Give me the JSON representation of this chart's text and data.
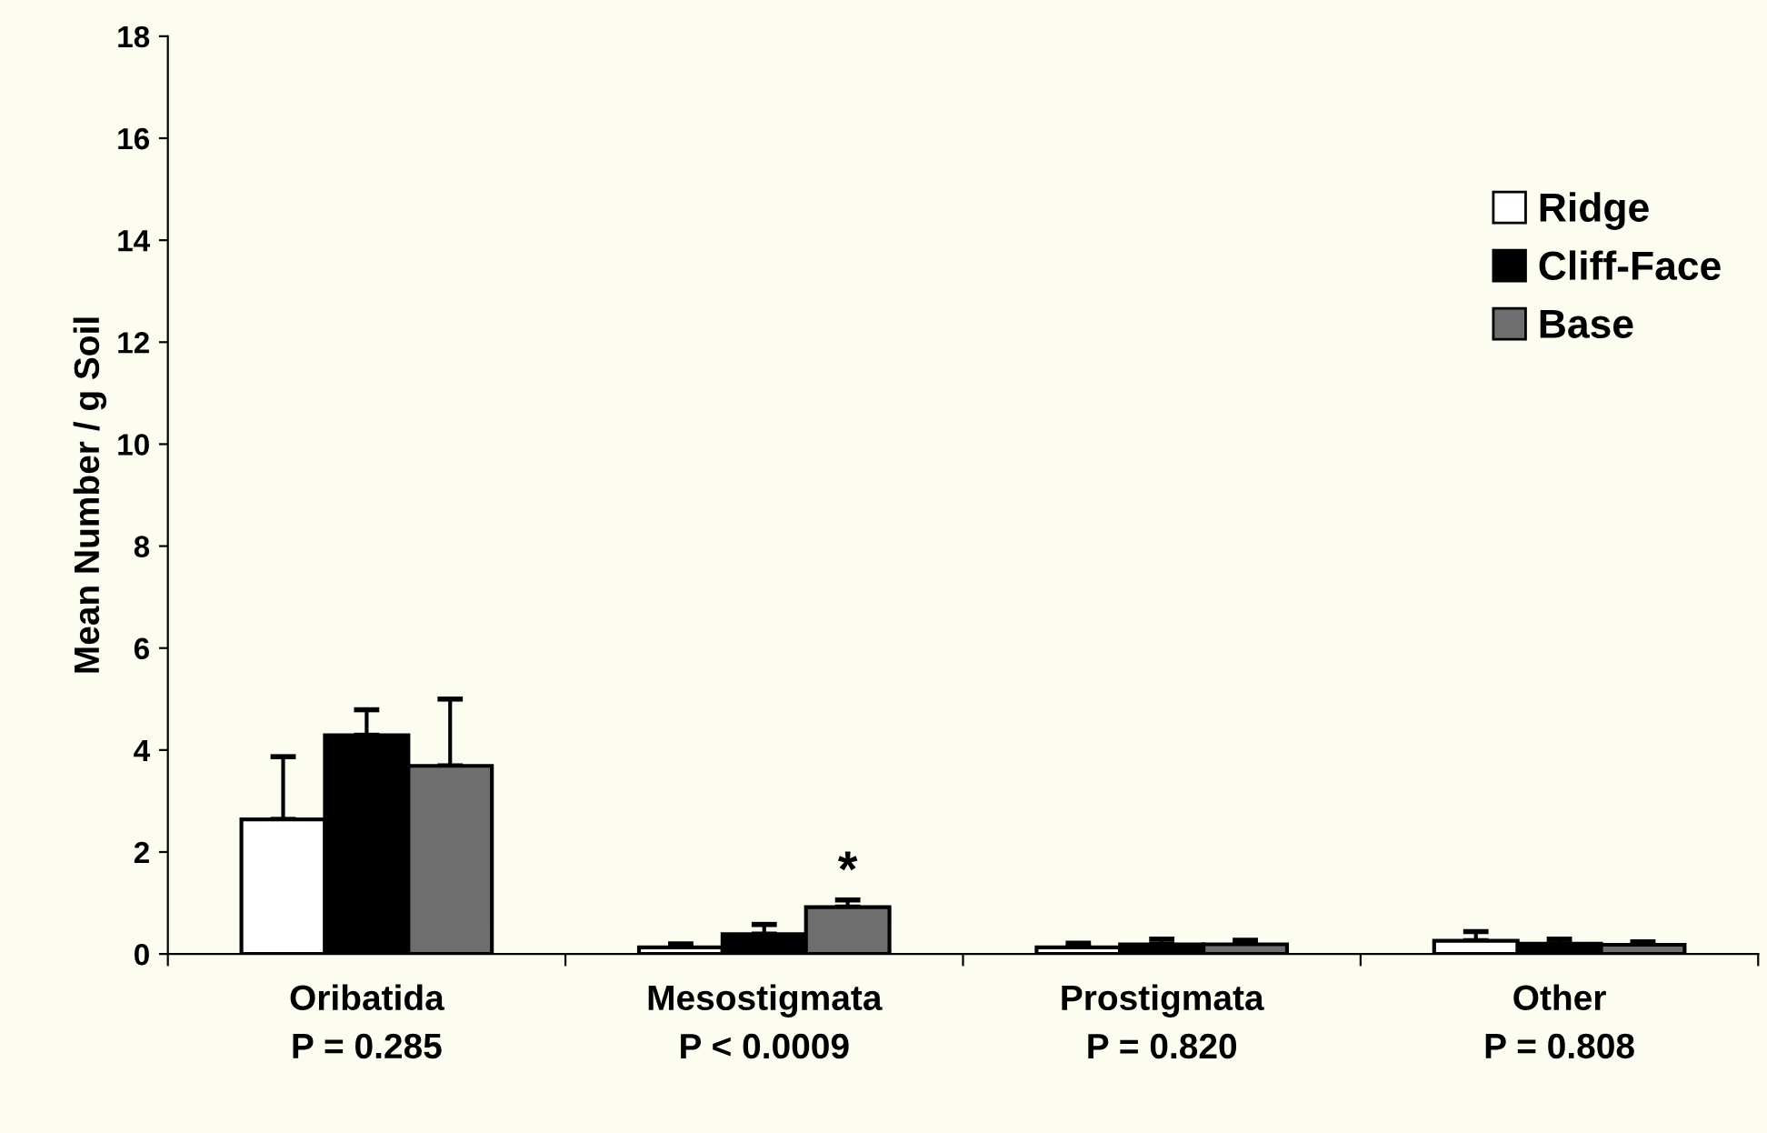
{
  "chart_data": {
    "type": "bar",
    "categories": [
      "Oribatida\nP = 0.285",
      "Mesostigmata\nP < 0.0009",
      "Prostigmata\nP = 0.820",
      "Other\nP = 0.808"
    ],
    "series": [
      {
        "name": "Ridge",
        "color": "#ffffff",
        "values": [
          2.64,
          0.13,
          0.13,
          0.26
        ],
        "errors": [
          [
            2.64,
            3.87
          ],
          [
            0.13,
            0.2
          ],
          [
            0.13,
            0.21
          ],
          [
            0.26,
            0.44
          ]
        ]
      },
      {
        "name": "Cliff-Face",
        "color": "#000000",
        "values": [
          4.29,
          0.39,
          0.19,
          0.2
        ],
        "errors": [
          [
            4.29,
            4.79
          ],
          [
            0.39,
            0.58
          ],
          [
            0.19,
            0.29
          ],
          [
            0.2,
            0.29
          ]
        ]
      },
      {
        "name": "Base",
        "color": "#6e6e6e",
        "values": [
          3.69,
          0.92,
          0.19,
          0.18
        ],
        "errors": [
          [
            3.69,
            5.0
          ],
          [
            0.92,
            1.06
          ],
          [
            0.19,
            0.27
          ],
          [
            0.18,
            0.24
          ]
        ]
      }
    ],
    "ylabel": "Mean Number / g Soil",
    "ylim": [
      0,
      18
    ],
    "yticks": [
      0,
      2,
      4,
      6,
      8,
      10,
      12,
      14,
      16,
      18
    ],
    "annotations": [
      "*"
    ],
    "grid": false,
    "legend": "top right"
  }
}
